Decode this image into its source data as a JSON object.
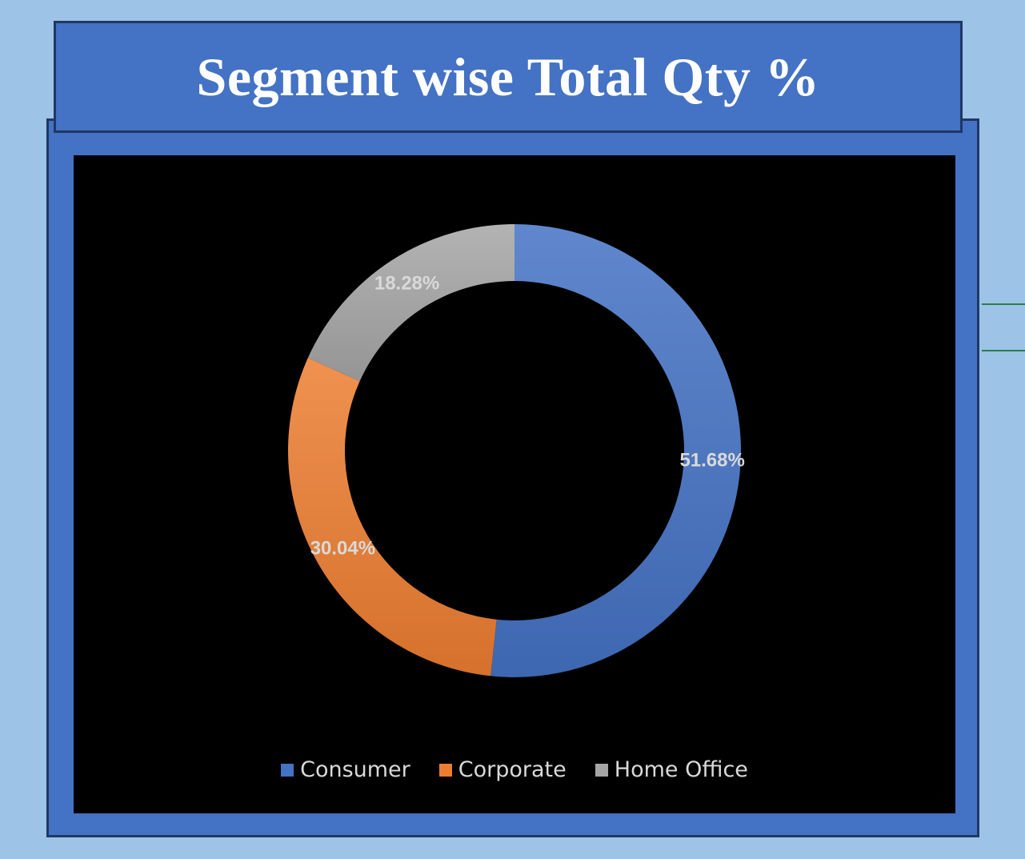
{
  "title": "Segment wise Total Qty %",
  "chart_data": {
    "type": "pie",
    "variant": "doughnut",
    "title": "Segment wise Total Qty %",
    "categories": [
      "Consumer",
      "Corporate",
      "Home Office"
    ],
    "values": [
      51.68,
      30.04,
      18.28
    ],
    "data_labels": [
      "51.68%",
      "30.04%",
      "18.28%"
    ],
    "legend_position": "bottom",
    "colors": [
      "#4472c4",
      "#ed7d31",
      "#a5a5a5"
    ]
  },
  "legend": {
    "items": [
      {
        "label": "Consumer",
        "color": "#4472c4"
      },
      {
        "label": "Corporate",
        "color": "#ed7d31"
      },
      {
        "label": "Home Office",
        "color": "#a5a5a5"
      }
    ]
  }
}
